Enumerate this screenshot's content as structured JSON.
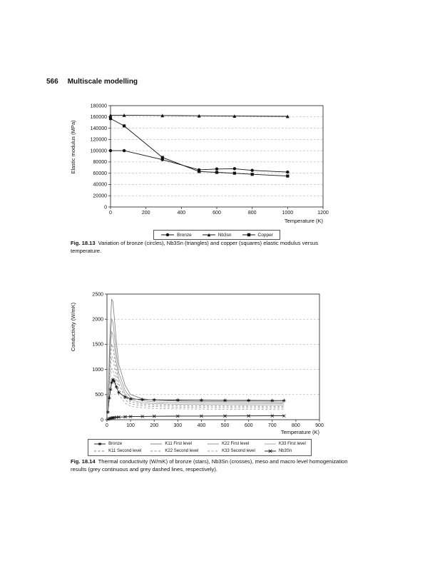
{
  "page": {
    "number": "566",
    "section_title": "Multiscale modelling"
  },
  "figures": [
    {
      "caption_label": "Fig. 18.13",
      "caption_text": "Variation of bronze (circles), Nb3Sn (triangles) and copper (squares) elastic modulus versus temperature.",
      "chart_data": {
        "type": "line",
        "title": "",
        "xlabel": "Temperature (K)",
        "ylabel": "Elastic modulus (MPa)",
        "xlim": [
          0,
          1200
        ],
        "ylim": [
          0,
          180000
        ],
        "xticks": [
          0,
          200,
          400,
          600,
          800,
          1000,
          1200
        ],
        "yticks": [
          0,
          20000,
          40000,
          60000,
          80000,
          100000,
          120000,
          140000,
          160000,
          180000
        ],
        "grid": "horizontal-dashed",
        "legend_position": "bottom",
        "series": [
          {
            "name": "Bronze",
            "marker": "circle",
            "marker_size": 2.2,
            "color": "#111111",
            "dash": "",
            "x": [
              0,
              77,
              293,
              500,
              600,
              700,
              800,
              1000
            ],
            "y": [
              100000,
              100000,
              84000,
              66000,
              67500,
              68000,
              65000,
              62000
            ]
          },
          {
            "name": "Nb3sn",
            "marker": "triangle",
            "marker_size": 2.4,
            "color": "#111111",
            "dash": "",
            "x": [
              0,
              77,
              293,
              500,
              700,
              1000
            ],
            "y": [
              163000,
              163000,
              162500,
              162000,
              161500,
              161000
            ]
          },
          {
            "name": "Copper",
            "marker": "square",
            "marker_size": 2.1,
            "color": "#111111",
            "dash": "",
            "x": [
              0,
              77,
              293,
              500,
              600,
              700,
              800,
              1000
            ],
            "y": [
              157000,
              144000,
              88000,
              63000,
              61500,
              60000,
              58000,
              55000
            ]
          }
        ]
      }
    },
    {
      "caption_label": "Fig. 18.14",
      "caption_text": "Thermal conductivity (W/mK) of bronze (stars), Nb3Sn (crosses), meso and macro level homogenization results (grey continuous and grey dashed lines, respectively).",
      "chart_data": {
        "type": "line",
        "title": "",
        "xlabel": "Temperature (K)",
        "ylabel": "Conductivity (W/mK)",
        "xlim": [
          0,
          900
        ],
        "ylim": [
          0,
          2500
        ],
        "xticks": [
          0,
          100,
          200,
          300,
          400,
          500,
          600,
          700,
          800,
          900
        ],
        "yticks": [
          0,
          500,
          1000,
          1500,
          2000,
          2500
        ],
        "grid": "horizontal-dashed",
        "legend_position": "bottom",
        "series": [
          {
            "name": "Bronze",
            "marker": "star",
            "marker_size": 2.4,
            "color": "#111111",
            "dash": "",
            "width": 0.9,
            "x": [
              4,
              10,
              15,
              20,
              25,
              30,
              40,
              50,
              77,
              100,
              150,
              200,
              300,
              400,
              500,
              600,
              700,
              750
            ],
            "y": [
              150,
              430,
              600,
              740,
              800,
              770,
              650,
              540,
              450,
              415,
              400,
              395,
              390,
              388,
              385,
              383,
              380,
              380
            ]
          },
          {
            "name": "K11 First level",
            "marker": "none",
            "color": "#7a7a7a",
            "dash": "",
            "width": 0.8,
            "x": [
              4,
              10,
              15,
              20,
              25,
              30,
              40,
              50,
              77,
              100,
              150,
              200,
              300,
              400,
              500,
              600,
              700,
              750
            ],
            "y": [
              300,
              1300,
              1950,
              2400,
              2350,
              2100,
              1550,
              1100,
              680,
              500,
              415,
              390,
              370,
              362,
              358,
              355,
              352,
              350
            ]
          },
          {
            "name": "K22 First level",
            "marker": "none",
            "color": "#8c8c8c",
            "dash": "",
            "width": 0.8,
            "x": [
              4,
              10,
              15,
              20,
              25,
              30,
              40,
              50,
              77,
              100,
              150,
              200,
              300,
              400,
              500,
              600,
              700,
              750
            ],
            "y": [
              260,
              1100,
              1650,
              2000,
              1950,
              1750,
              1300,
              930,
              580,
              440,
              375,
              355,
              340,
              333,
              328,
              325,
              322,
              320
            ]
          },
          {
            "name": "K33 First level",
            "marker": "none",
            "color": "#9e9e9e",
            "dash": "",
            "width": 0.8,
            "x": [
              4,
              10,
              15,
              20,
              25,
              30,
              40,
              50,
              77,
              100,
              150,
              200,
              300,
              400,
              500,
              600,
              700,
              750
            ],
            "y": [
              230,
              950,
              1450,
              1750,
              1700,
              1520,
              1130,
              810,
              510,
              395,
              340,
              322,
              308,
              302,
              298,
              295,
              292,
              290
            ]
          },
          {
            "name": "K11 Second level",
            "marker": "none",
            "color": "#7a7a7a",
            "dash": "3,2.5",
            "width": 0.8,
            "x": [
              4,
              10,
              15,
              20,
              25,
              30,
              40,
              50,
              77,
              100,
              150,
              200,
              300,
              400,
              500,
              600,
              700,
              750
            ],
            "y": [
              200,
              820,
              1250,
              1500,
              1460,
              1310,
              980,
              710,
              455,
              358,
              310,
              295,
              282,
              276,
              272,
              269,
              266,
              265
            ]
          },
          {
            "name": "K22 Second level",
            "marker": "none",
            "color": "#8c8c8c",
            "dash": "3,2.5",
            "width": 0.8,
            "x": [
              4,
              10,
              15,
              20,
              25,
              30,
              40,
              50,
              77,
              100,
              150,
              200,
              300,
              400,
              500,
              600,
              700,
              750
            ],
            "y": [
              170,
              690,
              1050,
              1260,
              1230,
              1100,
              830,
              600,
              395,
              315,
              275,
              262,
              250,
              245,
              241,
              238,
              236,
              235
            ]
          },
          {
            "name": "K33 Second level",
            "marker": "none",
            "color": "#9e9e9e",
            "dash": "3,2.5",
            "width": 0.8,
            "x": [
              4,
              10,
              15,
              20,
              25,
              30,
              40,
              50,
              77,
              100,
              150,
              200,
              300,
              400,
              500,
              600,
              700,
              750
            ],
            "y": [
              140,
              560,
              850,
              1020,
              995,
              890,
              680,
              495,
              330,
              268,
              236,
              225,
              215,
              211,
              208,
              205,
              203,
              202
            ]
          },
          {
            "name": "Nb3Sn",
            "marker": "x",
            "marker_size": 2.0,
            "color": "#111111",
            "dash": "",
            "width": 0.9,
            "x": [
              4,
              10,
              15,
              20,
              25,
              30,
              40,
              50,
              77,
              100,
              150,
              200,
              300,
              400,
              500,
              600,
              700,
              750
            ],
            "y": [
              8,
              20,
              28,
              34,
              38,
              42,
              48,
              52,
              58,
              62,
              66,
              68,
              71,
              73,
              74,
              75,
              76,
              76
            ]
          }
        ]
      }
    }
  ]
}
